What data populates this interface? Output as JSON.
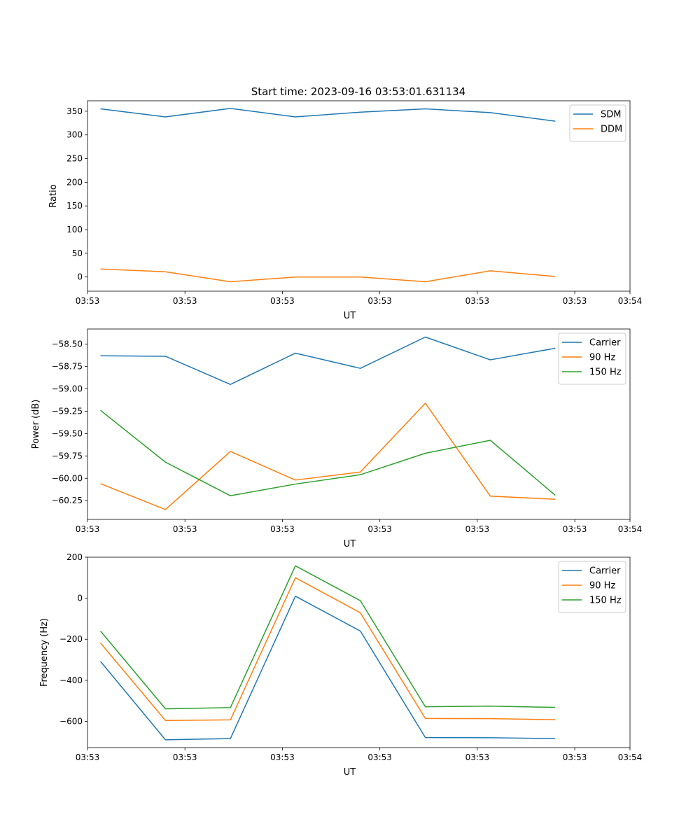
{
  "figure": {
    "title": "Start time: 2023-09-16 03:53:01.631134"
  },
  "colors": {
    "c0": "#1f77b4",
    "c1": "#ff7f0e",
    "c2": "#2ca02c"
  },
  "chart_data": [
    {
      "type": "line",
      "title": "Start time: 2023-09-16 03:53:01.631134",
      "xlabel": "UT",
      "ylabel": "Ratio",
      "x": [
        1,
        2,
        3,
        4,
        5,
        6,
        7,
        8
      ],
      "xlim": [
        0.8,
        9.15
      ],
      "xticks": [
        0.8,
        2.3,
        3.8,
        5.3,
        6.8,
        8.3,
        9.15
      ],
      "xtick_labels": [
        "03:53",
        "03:53",
        "03:53",
        "03:53",
        "03:53",
        "03:53",
        "03:54"
      ],
      "ylim": [
        -30,
        372
      ],
      "yticks": [
        0,
        50,
        100,
        150,
        200,
        250,
        300,
        350
      ],
      "ytick_labels": [
        "0",
        "50",
        "100",
        "150",
        "200",
        "250",
        "300",
        "350"
      ],
      "legend": "top-right",
      "series": [
        {
          "name": "SDM",
          "color": "#1f77b4",
          "values": [
            355,
            338,
            356,
            338,
            348,
            355,
            347,
            329
          ]
        },
        {
          "name": "DDM",
          "color": "#ff7f0e",
          "values": [
            17,
            11,
            -10,
            0,
            0,
            -10,
            13,
            1
          ]
        }
      ]
    },
    {
      "type": "line",
      "title": "",
      "xlabel": "UT",
      "ylabel": "Power (dB)",
      "x": [
        1,
        2,
        3,
        4,
        5,
        6,
        7,
        8
      ],
      "xlim": [
        0.8,
        9.15
      ],
      "xticks": [
        0.8,
        2.3,
        3.8,
        5.3,
        6.8,
        8.3,
        9.15
      ],
      "xtick_labels": [
        "03:53",
        "03:53",
        "03:53",
        "03:53",
        "03:53",
        "03:53",
        "03:54"
      ],
      "ylim": [
        -60.46,
        -58.33
      ],
      "yticks": [
        -60.25,
        -60.0,
        -59.75,
        -59.5,
        -59.25,
        -59.0,
        -58.75,
        -58.5
      ],
      "ytick_labels": [
        "−60.25",
        "−60.00",
        "−59.75",
        "−59.50",
        "−59.25",
        "−59.00",
        "−58.75",
        "−58.50"
      ],
      "legend": "top-right",
      "series": [
        {
          "name": "Carrier",
          "color": "#1f77b4",
          "values": [
            -58.63,
            -58.635,
            -58.95,
            -58.6,
            -58.77,
            -58.42,
            -58.675,
            -58.545
          ]
        },
        {
          "name": "90 Hz",
          "color": "#ff7f0e",
          "values": [
            -60.06,
            -60.35,
            -59.7,
            -60.02,
            -59.93,
            -59.16,
            -60.2,
            -60.235
          ]
        },
        {
          "name": "150 Hz",
          "color": "#2ca02c",
          "values": [
            -59.24,
            -59.82,
            -60.195,
            -60.065,
            -59.96,
            -59.72,
            -59.575,
            -60.19
          ]
        }
      ]
    },
    {
      "type": "line",
      "title": "",
      "xlabel": "UT",
      "ylabel": "Frequency (Hz)",
      "x": [
        1,
        2,
        3,
        4,
        5,
        6,
        7,
        8
      ],
      "xlim": [
        0.8,
        9.15
      ],
      "xticks": [
        0.8,
        2.3,
        3.8,
        5.3,
        6.8,
        8.3,
        9.15
      ],
      "xtick_labels": [
        "03:53",
        "03:53",
        "03:53",
        "03:53",
        "03:53",
        "03:53",
        "03:54"
      ],
      "ylim": [
        -728,
        200
      ],
      "yticks": [
        -600,
        -400,
        -200,
        0,
        200
      ],
      "ytick_labels": [
        "−600",
        "−400",
        "−200",
        "0",
        "200"
      ],
      "legend": "top-right",
      "series": [
        {
          "name": "Carrier",
          "color": "#1f77b4",
          "values": [
            -308,
            -690,
            -684,
            10,
            -160,
            -679,
            -680,
            -684
          ]
        },
        {
          "name": "90 Hz",
          "color": "#ff7f0e",
          "values": [
            -218,
            -596,
            -593,
            100,
            -71,
            -586,
            -587,
            -592
          ]
        },
        {
          "name": "150 Hz",
          "color": "#2ca02c",
          "values": [
            -160,
            -539,
            -533,
            158,
            -12,
            -529,
            -526,
            -532
          ]
        }
      ]
    }
  ]
}
